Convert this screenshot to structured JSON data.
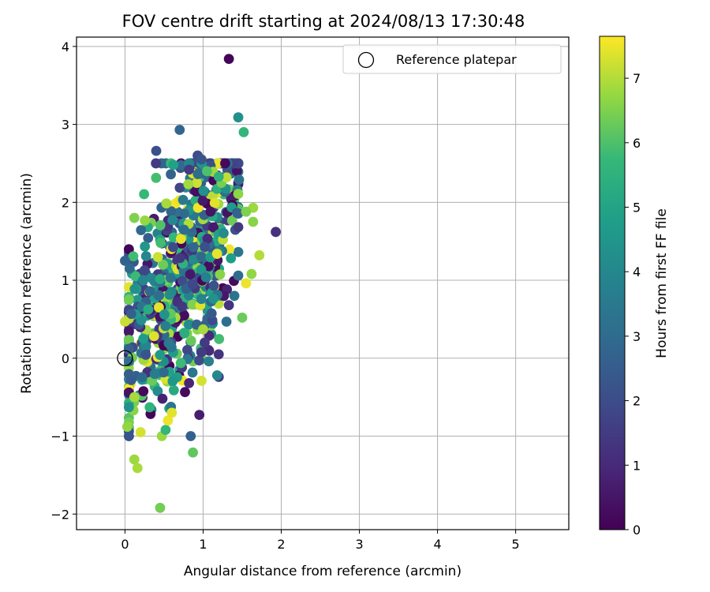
{
  "chart_data": {
    "type": "scatter",
    "title": "FOV centre drift starting at 2024/08/13 17:30:48",
    "xlabel": "Angular distance from reference (arcmin)",
    "ylabel": "Rotation from reference (arcmin)",
    "xlim": [
      -0.62,
      5.68
    ],
    "ylim": [
      -2.2,
      4.12
    ],
    "xticks": [
      0,
      1,
      2,
      3,
      4,
      5
    ],
    "yticks": [
      -2,
      -1,
      0,
      1,
      2,
      3,
      4
    ],
    "grid": true,
    "legend": {
      "position": "top-right",
      "entries": [
        "Reference platepar"
      ]
    },
    "reference_point": {
      "x": 0.0,
      "y": 0.0
    },
    "colorbar": {
      "label": "Hours from first FF file",
      "colormap": "viridis",
      "range": [
        0,
        7.65
      ],
      "ticks": [
        0,
        1,
        2,
        3,
        4,
        5,
        6,
        7
      ]
    },
    "cluster": {
      "center": [
        0.7,
        1.0
      ],
      "spread": [
        0.35,
        0.85
      ],
      "approx_count": 700
    },
    "points": [
      {
        "x": 1.33,
        "y": 3.84,
        "h": 0.1
      },
      {
        "x": 1.45,
        "y": 3.09,
        "h": 4.3
      },
      {
        "x": 1.52,
        "y": 2.9,
        "h": 5.7
      },
      {
        "x": 0.7,
        "y": 2.93,
        "h": 2.8
      },
      {
        "x": 0.93,
        "y": 2.6,
        "h": 2.0
      },
      {
        "x": 0.98,
        "y": 2.55,
        "h": 2.3
      },
      {
        "x": 0.4,
        "y": 2.66,
        "h": 2.1
      },
      {
        "x": 0.62,
        "y": 2.48,
        "h": 4.9
      },
      {
        "x": 0.82,
        "y": 2.42,
        "h": 1.5
      },
      {
        "x": 1.05,
        "y": 2.4,
        "h": 6.0
      },
      {
        "x": 1.3,
        "y": 2.32,
        "h": 7.1
      },
      {
        "x": 1.46,
        "y": 2.29,
        "h": 3.3
      },
      {
        "x": 1.2,
        "y": 2.33,
        "h": 5.5
      },
      {
        "x": 1.93,
        "y": 1.62,
        "h": 1.2
      },
      {
        "x": 1.64,
        "y": 1.93,
        "h": 6.8
      },
      {
        "x": 1.55,
        "y": 1.88,
        "h": 6.5
      },
      {
        "x": 1.64,
        "y": 1.75,
        "h": 6.6
      },
      {
        "x": 1.72,
        "y": 1.32,
        "h": 7.0
      },
      {
        "x": 1.62,
        "y": 1.08,
        "h": 6.7
      },
      {
        "x": 1.55,
        "y": 0.96,
        "h": 7.5
      },
      {
        "x": 1.5,
        "y": 0.52,
        "h": 6.3
      },
      {
        "x": 1.4,
        "y": 0.8,
        "h": 3.3
      },
      {
        "x": 1.33,
        "y": 0.68,
        "h": 1.3
      },
      {
        "x": 1.45,
        "y": 1.06,
        "h": 3.0
      },
      {
        "x": 0.12,
        "y": 1.8,
        "h": 6.5
      },
      {
        "x": 0.0,
        "y": 1.25,
        "h": 2.7
      },
      {
        "x": 0.06,
        "y": 1.15,
        "h": 2.9
      },
      {
        "x": 0.0,
        "y": 0.47,
        "h": 7.2
      },
      {
        "x": 0.05,
        "y": 0.12,
        "h": 2.6
      },
      {
        "x": 0.08,
        "y": -0.28,
        "h": 2.5
      },
      {
        "x": 0.03,
        "y": -0.88,
        "h": 6.7
      },
      {
        "x": 0.12,
        "y": -0.5,
        "h": 6.9
      },
      {
        "x": 0.2,
        "y": -0.95,
        "h": 7.3
      },
      {
        "x": 0.12,
        "y": -1.3,
        "h": 6.8
      },
      {
        "x": 0.16,
        "y": -1.41,
        "h": 6.9
      },
      {
        "x": 0.45,
        "y": -1.92,
        "h": 6.4
      },
      {
        "x": 0.87,
        "y": -1.21,
        "h": 6.2
      },
      {
        "x": 0.52,
        "y": -0.92,
        "h": 5.7
      },
      {
        "x": 0.55,
        "y": -0.8,
        "h": 7.5
      },
      {
        "x": 0.6,
        "y": -0.7,
        "h": 7.4
      },
      {
        "x": 0.48,
        "y": -0.52,
        "h": 0.8
      },
      {
        "x": 0.98,
        "y": -0.29,
        "h": 7.3
      },
      {
        "x": 0.82,
        "y": -0.32,
        "h": 0.9
      },
      {
        "x": 1.2,
        "y": -0.24,
        "h": 1.4
      },
      {
        "x": 1.18,
        "y": -0.22,
        "h": 4.0
      },
      {
        "x": 1.2,
        "y": 0.05,
        "h": 1.3
      },
      {
        "x": 1.0,
        "y": 0.37,
        "h": 6.9
      },
      {
        "x": 1.02,
        "y": 0.2,
        "h": 1.5
      }
    ]
  }
}
